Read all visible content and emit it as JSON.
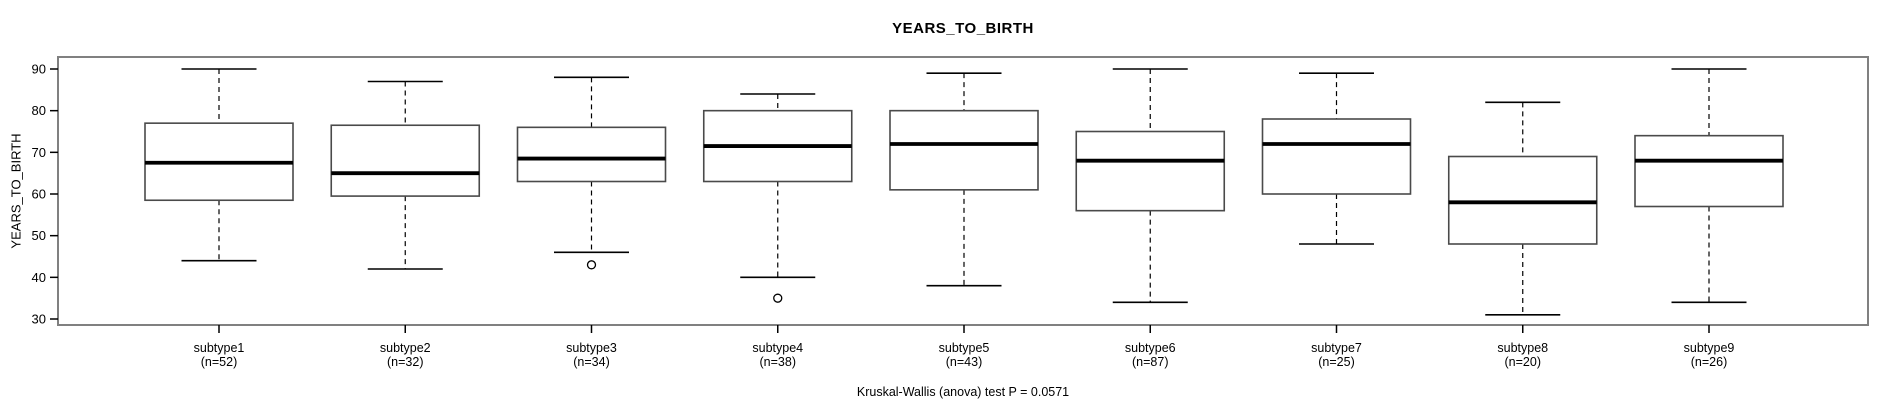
{
  "chart_data": {
    "type": "boxplot",
    "title": "YEARS_TO_BIRTH",
    "ylabel": "YEARS_TO_BIRTH",
    "annotation": "Kruskal-Wallis (anova) test P = 0.0571",
    "ylim": [
      28.5,
      92.5
    ],
    "yticks": [
      30,
      40,
      50,
      60,
      70,
      80,
      90
    ],
    "grid": false,
    "colors": {
      "frame": "#808080",
      "box_border": "#4a4a4a",
      "median": "#000000",
      "whisker": "#000000",
      "text": "#000000",
      "background": "#ffffff"
    },
    "groups": [
      {
        "label": "subtype1",
        "n": 52,
        "n_label": "(n=52)",
        "whisker_low": 44,
        "q1": 58.5,
        "median": 67.5,
        "q3": 77,
        "whisker_high": 90,
        "outliers": []
      },
      {
        "label": "subtype2",
        "n": 32,
        "n_label": "(n=32)",
        "whisker_low": 42,
        "q1": 59.5,
        "median": 65,
        "q3": 76.5,
        "whisker_high": 87,
        "outliers": []
      },
      {
        "label": "subtype3",
        "n": 34,
        "n_label": "(n=34)",
        "whisker_low": 46,
        "q1": 63,
        "median": 68.5,
        "q3": 76,
        "whisker_high": 88,
        "outliers": [
          43
        ]
      },
      {
        "label": "subtype4",
        "n": 38,
        "n_label": "(n=38)",
        "whisker_low": 40,
        "q1": 63,
        "median": 71.5,
        "q3": 80,
        "whisker_high": 84,
        "outliers": [
          35
        ]
      },
      {
        "label": "subtype5",
        "n": 43,
        "n_label": "(n=43)",
        "whisker_low": 38,
        "q1": 61,
        "median": 72,
        "q3": 80,
        "whisker_high": 89,
        "outliers": []
      },
      {
        "label": "subtype6",
        "n": 87,
        "n_label": "(n=87)",
        "whisker_low": 34,
        "q1": 56,
        "median": 68,
        "q3": 75,
        "whisker_high": 90,
        "outliers": []
      },
      {
        "label": "subtype7",
        "n": 25,
        "n_label": "(n=25)",
        "whisker_low": 48,
        "q1": 60,
        "median": 72,
        "q3": 78,
        "whisker_high": 89,
        "outliers": []
      },
      {
        "label": "subtype8",
        "n": 20,
        "n_label": "(n=20)",
        "whisker_low": 31,
        "q1": 48,
        "median": 58,
        "q3": 69,
        "whisker_high": 82,
        "outliers": []
      },
      {
        "label": "subtype9",
        "n": 26,
        "n_label": "(n=26)",
        "whisker_low": 34,
        "q1": 57,
        "median": 68,
        "q3": 74,
        "whisker_high": 90,
        "outliers": []
      }
    ]
  }
}
